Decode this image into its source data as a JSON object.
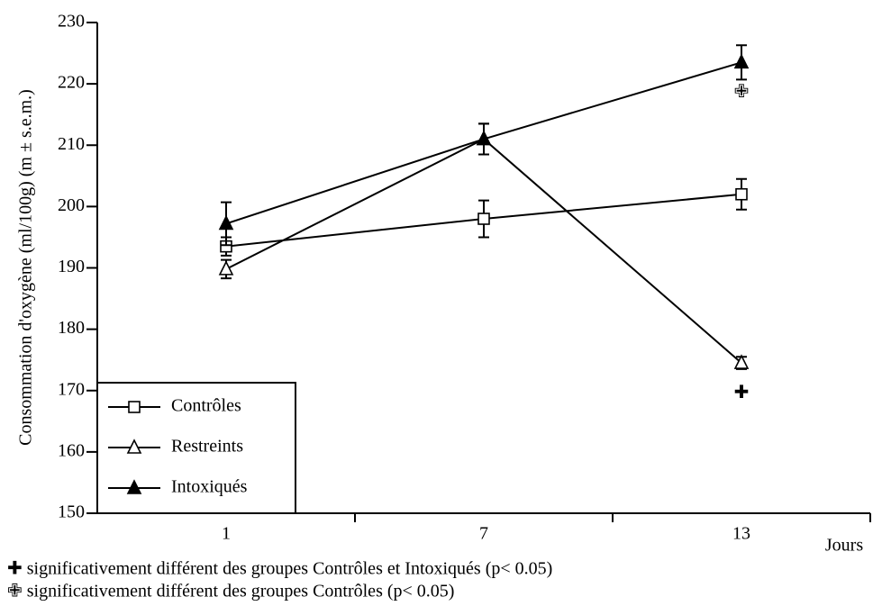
{
  "chart_data": {
    "type": "line",
    "y_label": "Consommation d'oxygène (ml/100g) (m ± s.e.m.)",
    "x_label": "Jours",
    "categories": [
      "1",
      "7",
      "13"
    ],
    "series": [
      {
        "name": "Contrôles",
        "color": "#000000",
        "marker": "square-open",
        "values": [
          193.5,
          198,
          202
        ],
        "errors": [
          1.5,
          3,
          2.5
        ]
      },
      {
        "name": "Restreints",
        "color": "#000000",
        "marker": "triangle-open",
        "values": [
          189.8,
          211,
          174.5
        ],
        "errors": [
          1.5,
          2.5,
          1
        ]
      },
      {
        "name": "Intoxiqués",
        "color": "#000000",
        "marker": "triangle-filled",
        "values": [
          197.2,
          211,
          223.5
        ],
        "errors": [
          3.5,
          2.5,
          2.8
        ]
      }
    ],
    "significance_marks": [
      {
        "symbol": "✚",
        "category": 2,
        "y": 169.5
      },
      {
        "symbol": "✙",
        "category": 2,
        "y": 218.5
      }
    ],
    "ylim": [
      150,
      230
    ],
    "yticks": [
      150,
      160,
      170,
      180,
      190,
      200,
      210,
      220,
      230
    ],
    "grid": false,
    "legend": "lower left",
    "annotations": [
      "✚ significativement différent des groupes Contrôles et Intoxiqués (p< 0.05)",
      "✙ significativement différent des groupes Contrôles  (p< 0.05)"
    ]
  }
}
